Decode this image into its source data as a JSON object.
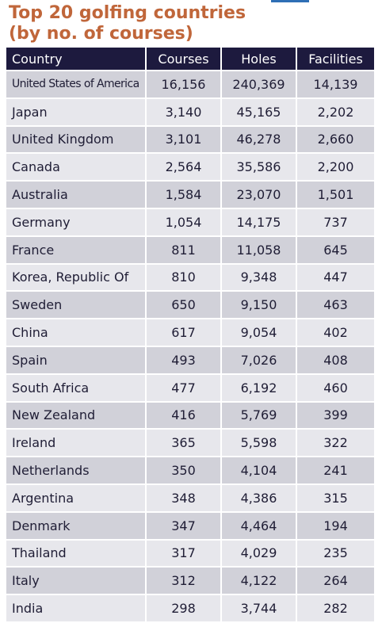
{
  "title": {
    "line1": "Top 20 golfing countries",
    "line2": "(by no. of courses)"
  },
  "table": {
    "headers": {
      "country": "Country",
      "courses": "Courses",
      "holes": "Holes",
      "facilities": "Facilities"
    },
    "rows": [
      {
        "country": "United States of America",
        "courses": "16,156",
        "holes": "240,369",
        "facilities": "14,139"
      },
      {
        "country": "Japan",
        "courses": "3,140",
        "holes": "45,165",
        "facilities": "2,202"
      },
      {
        "country": "United Kingdom",
        "courses": "3,101",
        "holes": "46,278",
        "facilities": "2,660"
      },
      {
        "country": "Canada",
        "courses": "2,564",
        "holes": "35,586",
        "facilities": "2,200"
      },
      {
        "country": "Australia",
        "courses": "1,584",
        "holes": "23,070",
        "facilities": "1,501"
      },
      {
        "country": "Germany",
        "courses": "1,054",
        "holes": "14,175",
        "facilities": "737"
      },
      {
        "country": "France",
        "courses": "811",
        "holes": "11,058",
        "facilities": "645"
      },
      {
        "country": "Korea, Republic Of",
        "courses": "810",
        "holes": "9,348",
        "facilities": "447"
      },
      {
        "country": "Sweden",
        "courses": "650",
        "holes": "9,150",
        "facilities": "463"
      },
      {
        "country": "China",
        "courses": "617",
        "holes": "9,054",
        "facilities": "402"
      },
      {
        "country": "Spain",
        "courses": "493",
        "holes": "7,026",
        "facilities": "408"
      },
      {
        "country": "South Africa",
        "courses": "477",
        "holes": "6,192",
        "facilities": "460"
      },
      {
        "country": "New Zealand",
        "courses": "416",
        "holes": "5,769",
        "facilities": "399"
      },
      {
        "country": "Ireland",
        "courses": "365",
        "holes": "5,598",
        "facilities": "322"
      },
      {
        "country": "Netherlands",
        "courses": "350",
        "holes": "4,104",
        "facilities": "241"
      },
      {
        "country": "Argentina",
        "courses": "348",
        "holes": "4,386",
        "facilities": "315"
      },
      {
        "country": "Denmark",
        "courses": "347",
        "holes": "4,464",
        "facilities": "194"
      },
      {
        "country": "Thailand",
        "courses": "317",
        "holes": "4,029",
        "facilities": "235"
      },
      {
        "country": "Italy",
        "courses": "312",
        "holes": "4,122",
        "facilities": "264"
      },
      {
        "country": "India",
        "courses": "298",
        "holes": "3,744",
        "facilities": "282"
      }
    ]
  },
  "colors": {
    "title": "#c0663a",
    "header_bg": "#1d1a3e",
    "header_text": "#ffffff",
    "row_dark": "#d1d1d9",
    "row_light": "#e7e7ec",
    "body_text": "#1f1d35",
    "top_accent": "#2f6fb5"
  }
}
